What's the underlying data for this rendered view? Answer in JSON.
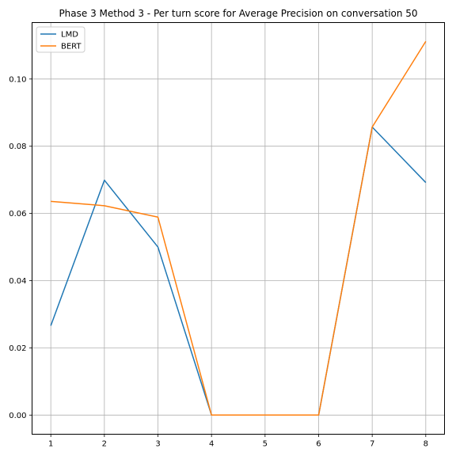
{
  "chart_data": {
    "type": "line",
    "title": "Phase 3 Method 3 - Per turn score for Average Precision on conversation 50",
    "xlabel": "",
    "ylabel": "",
    "x": [
      1,
      2,
      3,
      4,
      5,
      6,
      7,
      8
    ],
    "xlim": [
      0.65,
      8.35
    ],
    "ylim": [
      -0.0057,
      0.1168
    ],
    "xticks": [
      "1",
      "2",
      "3",
      "4",
      "5",
      "6",
      "7",
      "8"
    ],
    "yticks": [
      "0.00",
      "0.02",
      "0.04",
      "0.06",
      "0.08",
      "0.10"
    ],
    "ytick_values": [
      0.0,
      0.02,
      0.04,
      0.06,
      0.08,
      0.1
    ],
    "grid": true,
    "legend_position": "top-left",
    "series": [
      {
        "name": "LMD",
        "color": "#1f77b4",
        "values": [
          0.0266,
          0.0699,
          0.05,
          0.0,
          0.0,
          0.0,
          0.0857,
          0.0692
        ]
      },
      {
        "name": "BERT",
        "color": "#ff7f0e",
        "values": [
          0.0636,
          0.0623,
          0.0589,
          0.0,
          0.0,
          0.0,
          0.0857,
          0.1112
        ]
      }
    ]
  }
}
